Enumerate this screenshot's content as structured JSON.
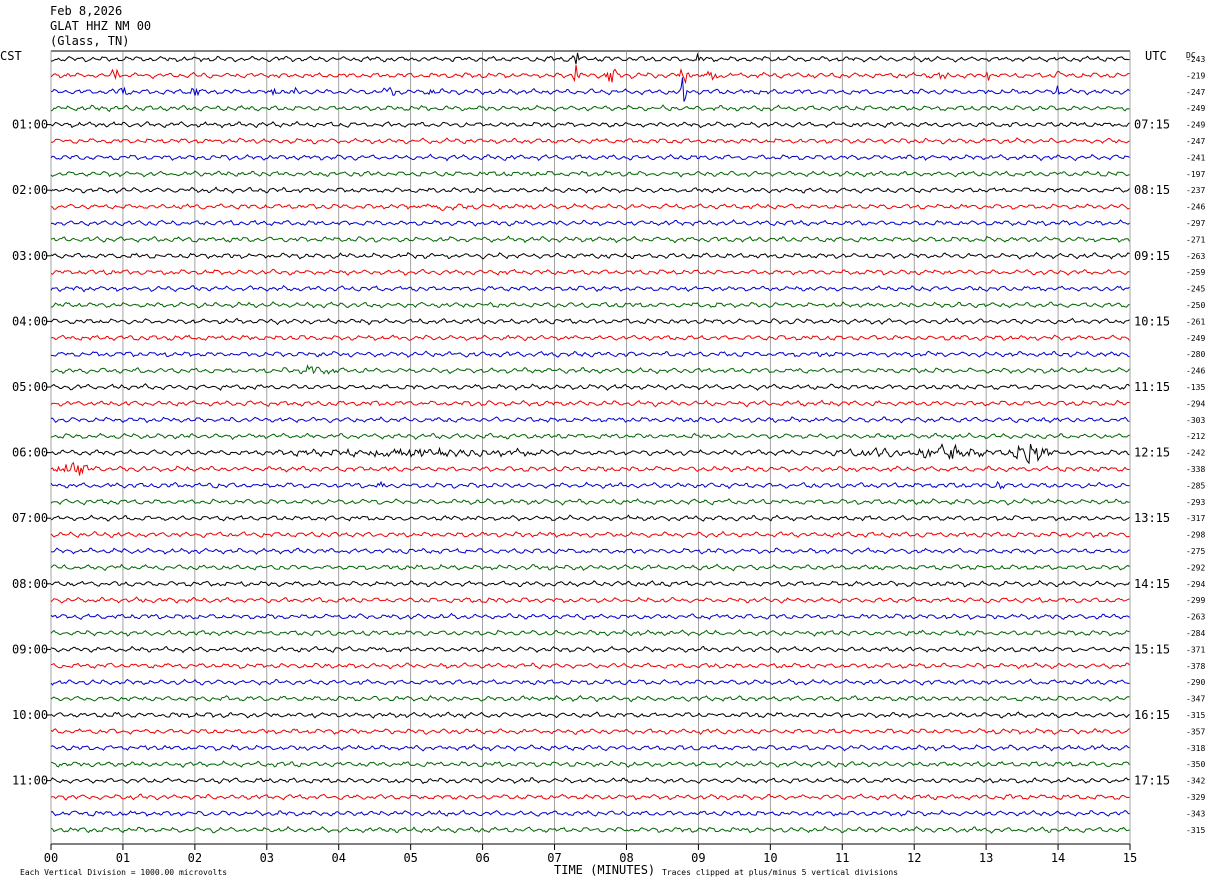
{
  "header": {
    "date": "Feb 8,2026",
    "station": "GLAT HHZ NM 00",
    "location": "(Glass, TN)"
  },
  "left_axis_label": "CST",
  "right_axis_label": "UTC",
  "dc_label": "DC",
  "x_axis_label": "TIME (MINUTES)",
  "footer_left": "Each Vertical Division = 1000.00 microvolts",
  "footer_right": "Traces clipped at plus/minus 5 vertical divisions",
  "colors": {
    "cycle": [
      "#000000",
      "#ee0000",
      "#0000cc",
      "#006600"
    ],
    "grid": "#8c8c8c"
  },
  "chart_data": {
    "type": "line",
    "title": "",
    "xlabel": "TIME (MINUTES)",
    "ylabel": "",
    "xlim": [
      0,
      15
    ],
    "x_ticks": [
      "00",
      "01",
      "02",
      "03",
      "04",
      "05",
      "06",
      "07",
      "08",
      "09",
      "10",
      "11",
      "12",
      "13",
      "14",
      "15"
    ],
    "rows": 48,
    "cst_ticks": [
      {
        "row": 4,
        "label": "01:00"
      },
      {
        "row": 8,
        "label": "02:00"
      },
      {
        "row": 12,
        "label": "03:00"
      },
      {
        "row": 16,
        "label": "04:00"
      },
      {
        "row": 20,
        "label": "05:00"
      },
      {
        "row": 24,
        "label": "06:00"
      },
      {
        "row": 28,
        "label": "07:00"
      },
      {
        "row": 32,
        "label": "08:00"
      },
      {
        "row": 36,
        "label": "09:00"
      },
      {
        "row": 40,
        "label": "10:00"
      },
      {
        "row": 44,
        "label": "11:00"
      }
    ],
    "utc_ticks": [
      {
        "row": 4,
        "label": "07:15"
      },
      {
        "row": 8,
        "label": "08:15"
      },
      {
        "row": 12,
        "label": "09:15"
      },
      {
        "row": 16,
        "label": "10:15"
      },
      {
        "row": 20,
        "label": "11:15"
      },
      {
        "row": 24,
        "label": "12:15"
      },
      {
        "row": 28,
        "label": "13:15"
      },
      {
        "row": 32,
        "label": "14:15"
      },
      {
        "row": 36,
        "label": "15:15"
      },
      {
        "row": 40,
        "label": "16:15"
      },
      {
        "row": 44,
        "label": "17:15"
      }
    ],
    "dc_offsets": [
      -243,
      -219,
      -247,
      -249,
      -249,
      -247,
      -241,
      -197,
      -237,
      -246,
      -297,
      -271,
      -263,
      -259,
      -245,
      -250,
      -261,
      -249,
      -280,
      -246,
      -135,
      -294,
      -303,
      -212,
      -242,
      -338,
      -285,
      -293,
      -317,
      -298,
      -275,
      -292,
      -294,
      -299,
      -263,
      -284,
      -371,
      -378,
      -290,
      -347,
      -315,
      -357,
      -318,
      -350,
      -342,
      -329,
      -343,
      -315
    ],
    "events": [
      {
        "row": 0,
        "minute": 7.3,
        "amp": 16,
        "dur": 0.05
      },
      {
        "row": 0,
        "minute": 9.0,
        "amp": 6,
        "dur": 0.05
      },
      {
        "row": 1,
        "minute": 0.9,
        "amp": 7,
        "dur": 0.08
      },
      {
        "row": 1,
        "minute": 7.3,
        "amp": 14,
        "dur": 0.05
      },
      {
        "row": 1,
        "minute": 7.8,
        "amp": 10,
        "dur": 0.12
      },
      {
        "row": 1,
        "minute": 8.8,
        "amp": 12,
        "dur": 0.1
      },
      {
        "row": 1,
        "minute": 9.2,
        "amp": 10,
        "dur": 0.12
      },
      {
        "row": 1,
        "minute": 12.4,
        "amp": 7,
        "dur": 0.1
      },
      {
        "row": 1,
        "minute": 13.0,
        "amp": 6,
        "dur": 0.1
      },
      {
        "row": 1,
        "minute": 14.0,
        "amp": 7,
        "dur": 0.05
      },
      {
        "row": 2,
        "minute": 1.0,
        "amp": 6,
        "dur": 0.08
      },
      {
        "row": 2,
        "minute": 2.0,
        "amp": 8,
        "dur": 0.08
      },
      {
        "row": 2,
        "minute": 3.1,
        "amp": 6,
        "dur": 0.06
      },
      {
        "row": 2,
        "minute": 3.4,
        "amp": 6,
        "dur": 0.06
      },
      {
        "row": 2,
        "minute": 4.7,
        "amp": 12,
        "dur": 0.1
      },
      {
        "row": 2,
        "minute": 5.3,
        "amp": 6,
        "dur": 0.06
      },
      {
        "row": 2,
        "minute": 8.8,
        "amp": 22,
        "dur": 0.05
      },
      {
        "row": 2,
        "minute": 14.0,
        "amp": 10,
        "dur": 0.05
      },
      {
        "row": 9,
        "minute": 5.4,
        "amp": 3,
        "dur": 0.6
      },
      {
        "row": 19,
        "minute": 3.6,
        "amp": 3,
        "dur": 0.6
      },
      {
        "row": 24,
        "minute": 5.0,
        "amp": 4,
        "dur": 2.5
      },
      {
        "row": 24,
        "minute": 11.5,
        "amp": 4,
        "dur": 0.7
      },
      {
        "row": 24,
        "minute": 12.5,
        "amp": 9,
        "dur": 0.6
      },
      {
        "row": 24,
        "minute": 13.6,
        "amp": 11,
        "dur": 0.4
      },
      {
        "row": 25,
        "minute": 0.3,
        "amp": 6,
        "dur": 0.4
      },
      {
        "row": 26,
        "minute": 4.6,
        "amp": 4,
        "dur": 0.05
      },
      {
        "row": 26,
        "minute": 13.2,
        "amp": 4,
        "dur": 0.1
      }
    ]
  }
}
